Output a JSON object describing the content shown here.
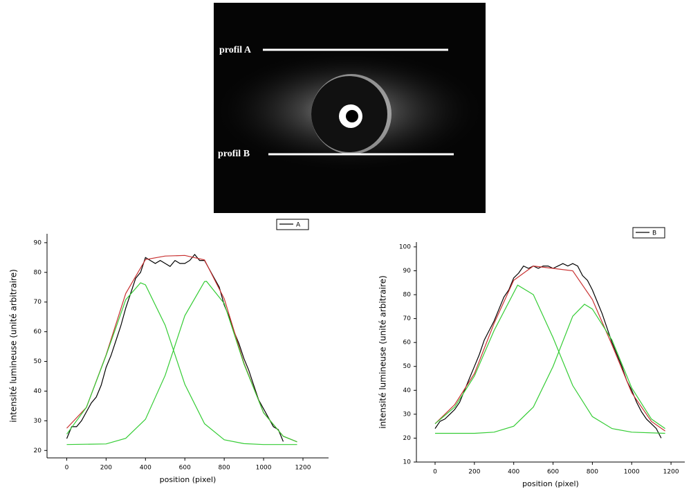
{
  "image": {
    "labels": [
      "profil A",
      "profil B"
    ]
  },
  "chart_data": [
    {
      "type": "line",
      "x_label": "position (pixel)",
      "y_label": "intensité lumineuse (unité arbitraire)",
      "xlim": [
        -100,
        1330
      ],
      "ylim": [
        17.5,
        93
      ],
      "xticks": [
        0,
        200,
        400,
        600,
        800,
        1000,
        1200
      ],
      "yticks": [
        20,
        30,
        40,
        50,
        60,
        70,
        80,
        90
      ],
      "legend": "top-right",
      "series": [
        {
          "name": "A",
          "color": "#000000",
          "x": [
            0,
            25,
            50,
            75,
            100,
            125,
            150,
            175,
            200,
            225,
            250,
            275,
            300,
            325,
            350,
            375,
            400,
            425,
            450,
            475,
            500,
            525,
            550,
            575,
            600,
            625,
            650,
            675,
            700,
            725,
            750,
            775,
            800,
            825,
            850,
            875,
            900,
            925,
            950,
            975,
            1000,
            1025,
            1050,
            1075,
            1100
          ],
          "values": [
            24,
            28,
            28,
            30,
            33,
            36,
            38,
            42,
            48,
            52,
            57,
            62,
            68,
            73,
            78,
            80,
            85,
            84,
            83,
            84,
            83,
            82,
            84,
            83,
            83,
            84,
            86,
            84,
            84,
            81,
            78,
            75,
            69,
            65,
            60,
            56,
            51,
            47,
            42,
            37,
            34,
            31,
            28,
            27,
            23
          ]
        },
        {
          "color": "#c83030",
          "x": [
            0,
            100,
            200,
            300,
            400,
            500,
            600,
            700,
            800,
            900,
            1000,
            1100,
            1170
          ],
          "values": [
            27.5,
            34.5,
            52.2,
            72.9,
            84.3,
            85.5,
            85.7,
            84.2,
            71.1,
            49.5,
            32.7,
            24.8,
            22.9
          ]
        },
        {
          "color": "#33cc33",
          "x": [
            0,
            100,
            200,
            300,
            375,
            400,
            500,
            600,
            700,
            800,
            900,
            1000,
            1170
          ],
          "values": [
            25.5,
            34.5,
            52,
            70.8,
            76.5,
            75.8,
            62.2,
            42.3,
            29,
            23.6,
            22.3,
            22,
            22
          ]
        },
        {
          "color": "#33cc33",
          "x": [
            0,
            200,
            300,
            400,
            500,
            550,
            600,
            700,
            710,
            800,
            900,
            1000,
            1100,
            1170
          ],
          "values": [
            22,
            22.2,
            24.1,
            30.5,
            45.3,
            55.4,
            65.4,
            76.9,
            77,
            69.5,
            49.2,
            32.7,
            24.8,
            22.9
          ]
        }
      ]
    },
    {
      "type": "line",
      "x_label": "position (pixel)",
      "y_label": "intensité lumineuse (unité arbitraire)",
      "xlim": [
        -95,
        1270
      ],
      "ylim": [
        10,
        102
      ],
      "xticks": [
        0,
        200,
        400,
        600,
        800,
        1000,
        1200
      ],
      "yticks": [
        10,
        20,
        30,
        40,
        50,
        60,
        70,
        80,
        90,
        100
      ],
      "legend": "top-right",
      "series": [
        {
          "name": "B",
          "color": "#000000",
          "x": [
            0,
            25,
            50,
            75,
            100,
            125,
            150,
            175,
            200,
            225,
            250,
            275,
            300,
            325,
            350,
            375,
            400,
            425,
            450,
            475,
            500,
            525,
            550,
            575,
            600,
            625,
            650,
            675,
            700,
            725,
            750,
            775,
            800,
            825,
            850,
            875,
            900,
            925,
            950,
            975,
            1000,
            1025,
            1050,
            1075,
            1100,
            1125,
            1150
          ],
          "values": [
            24,
            27,
            28,
            30,
            32,
            35,
            40,
            45,
            50,
            55,
            61,
            65,
            69,
            74,
            79,
            82,
            87,
            89,
            92,
            91,
            92,
            91,
            92,
            92,
            91,
            92,
            93,
            92,
            93,
            92,
            88,
            86,
            82,
            77,
            72,
            66,
            60,
            55,
            50,
            44,
            40,
            35,
            31,
            28,
            26,
            24,
            20
          ]
        },
        {
          "color": "#c83030",
          "x": [
            0,
            100,
            200,
            300,
            400,
            500,
            600,
            700,
            800,
            900,
            1000,
            1100,
            1170
          ],
          "values": [
            26,
            34,
            47,
            68,
            86,
            92,
            91,
            90,
            78,
            59,
            39,
            27,
            23
          ]
        },
        {
          "color": "#33cc33",
          "x": [
            0,
            100,
            200,
            300,
            420,
            500,
            600,
            700,
            800,
            900,
            1000,
            1170
          ],
          "values": [
            26,
            33,
            46,
            65,
            84,
            80,
            62,
            42,
            29,
            24,
            22.5,
            22
          ]
        },
        {
          "color": "#33cc33",
          "x": [
            0,
            200,
            300,
            400,
            500,
            600,
            700,
            760,
            800,
            900,
            1000,
            1100,
            1170
          ],
          "values": [
            22,
            22,
            22.5,
            25,
            33,
            50,
            71,
            76,
            74,
            61,
            41,
            28,
            24
          ]
        }
      ]
    }
  ]
}
